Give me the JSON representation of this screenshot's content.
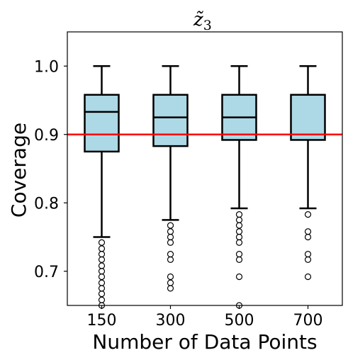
{
  "chart_data": {
    "type": "boxplot",
    "title": "z̃",
    "title_subscript": "3",
    "xlabel": "Number of Data Points",
    "ylabel": "Coverage",
    "ylim": [
      0.65,
      1.05
    ],
    "yticks": [
      0.7,
      0.8,
      0.9,
      1.0
    ],
    "ytick_labels": [
      "0.7",
      "0.8",
      "0.9",
      "1.0"
    ],
    "categories": [
      "150",
      "300",
      "500",
      "700"
    ],
    "box_color": "#add8e6",
    "reference_line": {
      "y": 0.9,
      "color": "#ff0000"
    },
    "boxes": [
      {
        "category": "150",
        "whislo": 0.75,
        "q1": 0.875,
        "med": 0.933,
        "q3": 0.958,
        "whishi": 1.0,
        "fliers": [
          0.742,
          0.733,
          0.725,
          0.717,
          0.708,
          0.7,
          0.692,
          0.683,
          0.675,
          0.667,
          0.658,
          0.65
        ]
      },
      {
        "category": "300",
        "whislo": 0.775,
        "q1": 0.883,
        "med": 0.925,
        "q3": 0.958,
        "whishi": 1.0,
        "fliers": [
          0.767,
          0.758,
          0.75,
          0.742,
          0.725,
          0.717,
          0.692,
          0.683,
          0.675
        ]
      },
      {
        "category": "500",
        "whislo": 0.792,
        "q1": 0.892,
        "med": 0.925,
        "q3": 0.958,
        "whishi": 1.0,
        "fliers": [
          0.783,
          0.775,
          0.767,
          0.758,
          0.75,
          0.742,
          0.725,
          0.717,
          0.692,
          0.65
        ]
      },
      {
        "category": "700",
        "whislo": 0.792,
        "q1": 0.892,
        "med": 0.958,
        "q3": 0.958,
        "whishi": 1.0,
        "fliers": [
          0.783,
          0.758,
          0.75,
          0.725,
          0.717,
          0.692
        ]
      }
    ]
  }
}
